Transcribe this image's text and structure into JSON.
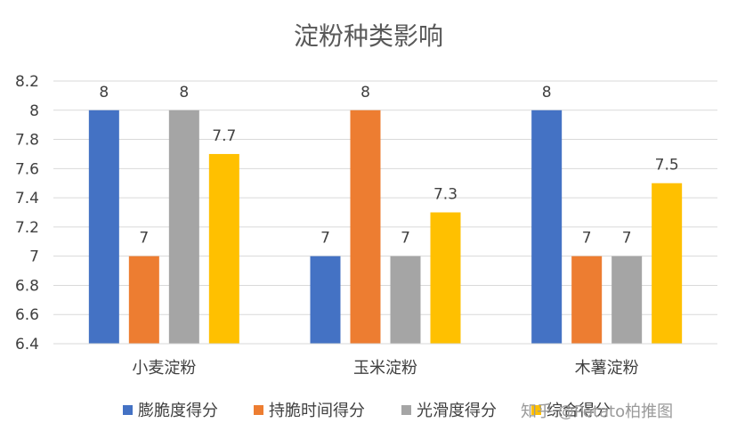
{
  "chart_data": {
    "type": "bar",
    "title": "淀粉种类影响",
    "categories": [
      "小麦淀粉",
      "玉米淀粉",
      "木薯淀粉"
    ],
    "series": [
      {
        "name": "膨脆度得分",
        "color": "#4472C4",
        "values": [
          8,
          7,
          8
        ]
      },
      {
        "name": "持脆时间得分",
        "color": "#ED7D31",
        "values": [
          7,
          8,
          7
        ]
      },
      {
        "name": "光滑度得分",
        "color": "#A5A5A5",
        "values": [
          8,
          7,
          7
        ]
      },
      {
        "name": "综合得分",
        "color": "#FFC000",
        "values": [
          7.7,
          7.3,
          7.5
        ]
      }
    ],
    "ylim": [
      6.4,
      8.2
    ],
    "yticks": [
      "6.4",
      "6.6",
      "6.8",
      "7",
      "7.2",
      "7.4",
      "7.6",
      "7.8",
      "8",
      "8.2"
    ],
    "grid": true,
    "legend": "bottom"
  },
  "watermark": "知乎 @Potato柏推图"
}
